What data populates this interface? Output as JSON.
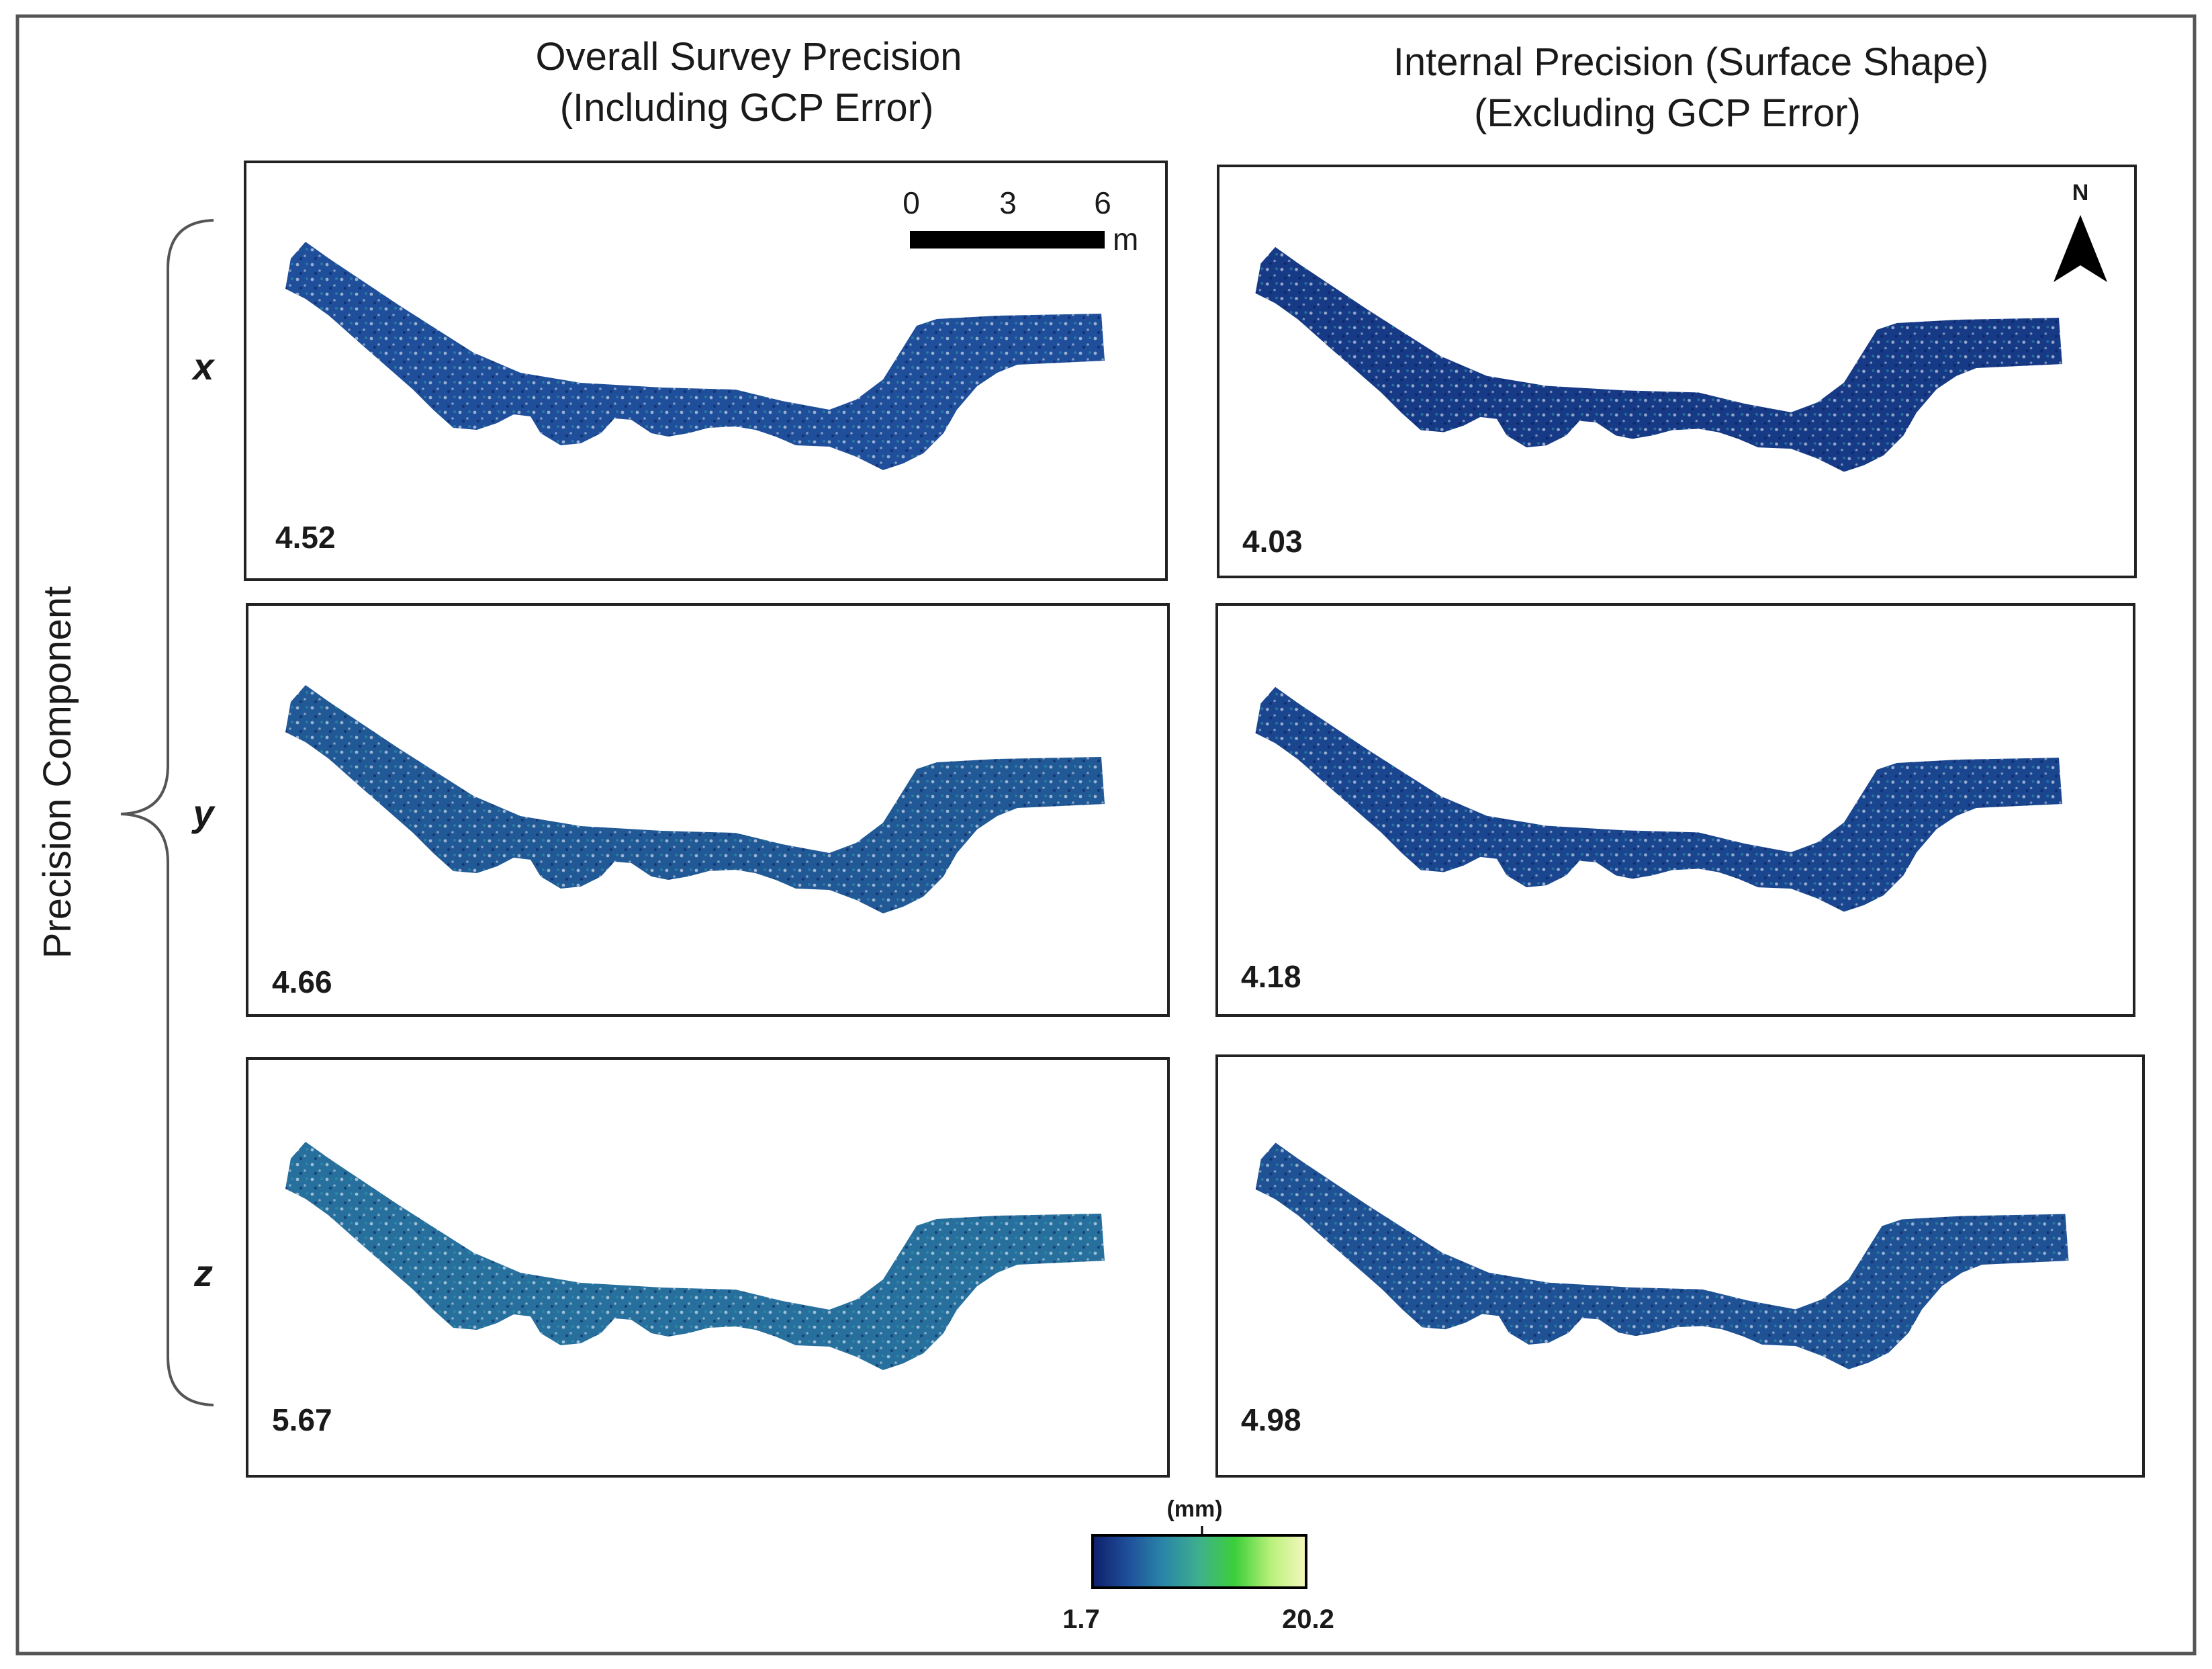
{
  "columns": [
    {
      "title_line1": "Overall Survey Precision",
      "title_line2": "(Including GCP Error)"
    },
    {
      "title_line1": "Internal Precision (Surface Shape)",
      "title_line2": "(Excluding GCP Error)"
    }
  ],
  "row_axis_label": "Precision Component",
  "rows": [
    {
      "component": "x",
      "values": [
        "4.52",
        "4.03"
      ]
    },
    {
      "component": "y",
      "values": [
        "4.66",
        "4.18"
      ]
    },
    {
      "component": "z",
      "values": [
        "5.67",
        "4.98"
      ]
    }
  ],
  "scale_bar": {
    "tick_0": "0",
    "tick_1": "3",
    "tick_2": "6",
    "unit": "m"
  },
  "north_arrow": {
    "label": "N"
  },
  "colorbar": {
    "unit": "(mm)",
    "min": "1.7",
    "max": "20.2",
    "colors": [
      "#0f1f6b",
      "#1f4f9a",
      "#2a86a8",
      "#3fb08c",
      "#3ccf3a",
      "#b8f07a",
      "#f6f7c0"
    ]
  },
  "colors": {
    "river_dark": "#12246e",
    "river_mid": "#1f5a9c",
    "river_teal": "#2c8fa3",
    "river_green": "#4fcf4a"
  }
}
